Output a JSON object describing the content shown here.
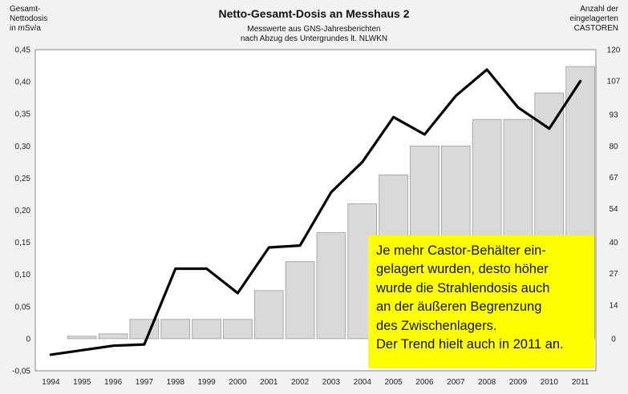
{
  "header": {
    "left_axis_label": [
      "Gesamt-",
      "Nettodosis",
      "in mSv/a"
    ],
    "right_axis_label": [
      "Anzahl der",
      "eingelagerten",
      "CASTOREN"
    ],
    "title": "Netto-Gesamt-Dosis an Messhaus 2",
    "subtitle": [
      "Messwerte aus GNS-Jahresberichten",
      "nach Abzug des Untergrundes lt. NLWKN"
    ]
  },
  "note": {
    "lines": [
      "Je mehr Castor-Behälter ein-",
      "gelagert wurden, desto höher",
      "wurde die Strahlendosis auch",
      "an der äußeren Begrenzung",
      "des Zwischenlagers.",
      "Der Trend hielt auch in 2011 an."
    ]
  },
  "colors": {
    "background": "#f2f2f2",
    "plot_background": "#ffffff",
    "bar_fill": "#d9d9d9",
    "bar_stroke": "#999999",
    "line": "#000000",
    "note_background": "#ffff00"
  },
  "chart_data": {
    "type": "bar+line",
    "categories": [
      "1994",
      "1995",
      "1996",
      "1997",
      "1998",
      "1999",
      "2000",
      "2001",
      "2002",
      "2003",
      "2004",
      "2005",
      "2006",
      "2007",
      "2008",
      "2009",
      "2010",
      "2011"
    ],
    "series": [
      {
        "name": "Anzahl der eingelagerten CASTOREN",
        "type": "bar",
        "axis": "right",
        "values": [
          0,
          1,
          2,
          8,
          8,
          8,
          8,
          20,
          32,
          44,
          56,
          68,
          80,
          80,
          91,
          91,
          102,
          113
        ]
      },
      {
        "name": "Gesamt-Nettodosis in mSv/a",
        "type": "line",
        "axis": "left",
        "values": [
          -0.025,
          -0.018,
          -0.011,
          -0.009,
          0.109,
          0.109,
          0.071,
          0.142,
          0.145,
          0.228,
          0.275,
          0.345,
          0.318,
          0.378,
          0.419,
          0.36,
          0.327,
          0.401
        ]
      }
    ],
    "y_left": {
      "label": "Gesamt-Nettodosis in mSv/a",
      "ylim": [
        -0.05,
        0.45
      ],
      "ticks": [
        -0.05,
        0,
        0.05,
        0.1,
        0.15,
        0.2,
        0.25,
        0.3,
        0.35,
        0.4,
        0.45
      ],
      "tick_labels": [
        "-0,05",
        "0",
        "0,05",
        "0,10",
        "0,15",
        "0,20",
        "0,25",
        "0,30",
        "0,35",
        "0,40",
        "0,45"
      ]
    },
    "y_right": {
      "label": "Anzahl der eingelagerten CASTOREN",
      "ticks": [
        0,
        14,
        27,
        40,
        54,
        67,
        80,
        93,
        107,
        120
      ],
      "tick_labels": [
        "0",
        "14",
        "27",
        "40",
        "54",
        "67",
        "80",
        "93",
        "107",
        "120"
      ]
    },
    "grid": false
  }
}
